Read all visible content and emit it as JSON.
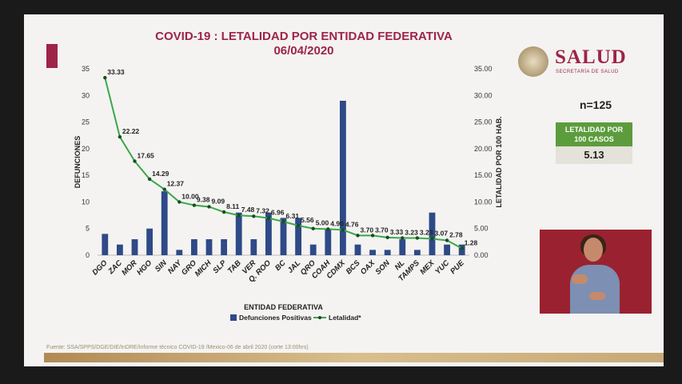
{
  "title_line1": "COVID-19 : LETALIDAD POR ENTIDAD FEDERATIVA",
  "title_line2": "06/04/2020",
  "logo": {
    "name": "SALUD",
    "subtitle": "SECRETARÍA DE SALUD"
  },
  "summary": {
    "n_label": "n=125",
    "box_label_line1": "LETALIDAD POR",
    "box_label_line2": "100 CASOS",
    "box_value": "5.13"
  },
  "source": "Fuente: SSA/SPPS/DGE/DIE/InDRE/Informe técnico COVID-19 /Mexico-06 de abril 2020 (corte 13:00hrs)",
  "colors": {
    "bar": "#2e4a87",
    "line": "#3aa84a",
    "accent": "#9d2449",
    "label_box": "#5c9c3d"
  },
  "chart_data": {
    "type": "bar",
    "title": "COVID-19 : LETALIDAD POR ENTIDAD FEDERATIVA",
    "subtitle": "06/04/2020",
    "xlabel": "ENTIDAD FEDERATIVA",
    "ylabel_left": "DEFUNCIONES",
    "ylabel_right": "LETALIDAD POR 100 HAB.",
    "left_ylim": [
      0,
      35
    ],
    "right_ylim": [
      0,
      35
    ],
    "left_ticks": [
      "0",
      "5",
      "10",
      "15",
      "20",
      "25",
      "30",
      "35"
    ],
    "right_ticks": [
      "0.00",
      "5.00",
      "10.00",
      "15.00",
      "20.00",
      "25.00",
      "30.00",
      "35.00"
    ],
    "categories": [
      "DGO",
      "ZAC",
      "MOR",
      "HGO",
      "SIN",
      "NAY",
      "GRO",
      "MICH",
      "SLP",
      "TAB",
      "VER",
      "Q. ROO",
      "BC",
      "JAL",
      "QRO",
      "COAH",
      "CDMX",
      "BCS",
      "OAX",
      "SON",
      "NL",
      "TAMPS",
      "MEX",
      "YUC",
      "PUE"
    ],
    "series": [
      {
        "name": "Defunciones Positivas",
        "type": "bar",
        "axis": "left",
        "values": [
          4,
          2,
          3,
          5,
          12,
          1,
          3,
          3,
          3,
          8,
          3,
          8,
          7,
          7,
          2,
          5,
          29,
          2,
          1,
          1,
          3,
          1,
          8,
          2,
          2
        ]
      },
      {
        "name": "Letalidad*",
        "type": "line",
        "axis": "right",
        "values": [
          33.33,
          22.22,
          17.65,
          14.29,
          12.37,
          10.0,
          9.38,
          9.09,
          8.11,
          7.48,
          7.32,
          6.96,
          6.31,
          5.56,
          5.0,
          4.9,
          4.76,
          3.7,
          3.7,
          3.33,
          3.23,
          3.23,
          3.07,
          2.78,
          1.28
        ],
        "labels": [
          "33.33",
          "22.22",
          "17.65",
          "14.29",
          "12.37",
          "10.00",
          "9.38",
          "9.09",
          "8.11",
          "7.48",
          "7.32",
          "6.96",
          "6.31",
          "5.56",
          "5.00",
          "4.90",
          "4.76",
          "3.70",
          "3.70",
          "3.33",
          "3.23",
          "3.23",
          "3.07",
          "2.78",
          "1.28"
        ]
      }
    ],
    "legend_position": "bottom",
    "grid": false
  }
}
